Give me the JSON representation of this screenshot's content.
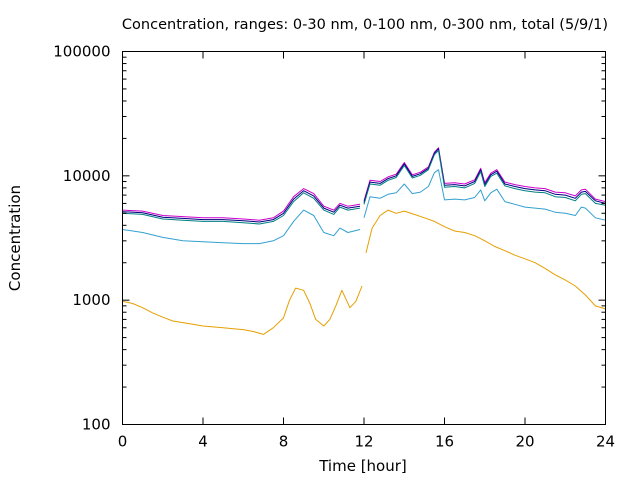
{
  "chart_data": {
    "type": "line",
    "title": "Concentration, ranges: 0-30 nm, 0-100 nm, 0-300 nm, total (5/9/1)",
    "xlabel": "Time [hour]",
    "ylabel": "Concentration",
    "xlim": [
      0,
      24
    ],
    "ylim": [
      100,
      100000
    ],
    "yscale": "log",
    "xticks": [
      "0",
      "4",
      "8",
      "12",
      "16",
      "20",
      "24"
    ],
    "yticks": [
      "100",
      "1000",
      "10000",
      "100000"
    ],
    "grid": false,
    "legend": "none",
    "series": [
      {
        "color": "#cc00cc",
        "x": [
          0,
          1,
          2,
          3,
          4,
          5,
          6,
          6.8,
          7.5,
          8,
          8.5,
          9,
          9.5,
          10,
          10.5,
          10.8,
          11.2,
          11.8,
          12,
          12.3,
          12.8,
          13.2,
          13.6,
          14,
          14.4,
          14.8,
          15.2,
          15.5,
          15.7,
          16,
          16.5,
          17,
          17.5,
          17.8,
          18,
          18.3,
          18.6,
          19,
          19.5,
          20,
          20.5,
          21,
          21.5,
          22,
          22.5,
          22.8,
          23,
          23.5,
          24
        ],
        "values": [
          5300,
          5200,
          4800,
          4700,
          4600,
          4600,
          4500,
          4400,
          4600,
          5200,
          6800,
          7900,
          7200,
          5700,
          5300,
          6000,
          5700,
          5900,
          6300,
          9200,
          9000,
          9800,
          10300,
          12800,
          10200,
          10700,
          11800,
          15500,
          16800,
          8700,
          8800,
          8600,
          9300,
          11500,
          8800,
          10500,
          11200,
          8900,
          8500,
          8200,
          8000,
          7900,
          7400,
          7300,
          6900,
          7700,
          7800,
          6500,
          6200
        ]
      },
      {
        "color": "#000080",
        "x": [
          0,
          1,
          2,
          3,
          4,
          5,
          6,
          6.8,
          7.5,
          8,
          8.5,
          9,
          9.5,
          10,
          10.5,
          10.8,
          11.2,
          11.8,
          12,
          12.3,
          12.8,
          13.2,
          13.6,
          14,
          14.4,
          14.8,
          15.2,
          15.5,
          15.7,
          16,
          16.5,
          17,
          17.5,
          17.8,
          18,
          18.3,
          18.6,
          19,
          19.5,
          20,
          20.5,
          21,
          21.5,
          22,
          22.5,
          22.8,
          23,
          23.5,
          24
        ],
        "values": [
          5150,
          5050,
          4650,
          4550,
          4450,
          4450,
          4350,
          4250,
          4450,
          5000,
          6500,
          7600,
          6900,
          5500,
          5100,
          5800,
          5500,
          5700,
          6100,
          8900,
          8700,
          9500,
          10000,
          12500,
          9900,
          10400,
          11500,
          15200,
          16500,
          8400,
          8500,
          8300,
          9000,
          11200,
          8500,
          10200,
          10900,
          8600,
          8200,
          7900,
          7700,
          7600,
          7100,
          7000,
          6600,
          7400,
          7500,
          6300,
          6000
        ]
      },
      {
        "color": "#008080",
        "x": [
          0,
          1,
          2,
          3,
          4,
          5,
          6,
          6.8,
          7.5,
          8,
          8.5,
          9,
          9.5,
          10,
          10.5,
          10.8,
          11.2,
          11.8,
          12,
          12.3,
          12.8,
          13.2,
          13.6,
          14,
          14.4,
          14.8,
          15.2,
          15.5,
          15.7,
          16,
          16.5,
          17,
          17.5,
          17.8,
          18,
          18.3,
          18.6,
          19,
          19.5,
          20,
          20.5,
          21,
          21.5,
          22,
          22.5,
          22.8,
          23,
          23.5,
          24
        ],
        "values": [
          5000,
          4900,
          4500,
          4400,
          4300,
          4300,
          4200,
          4100,
          4300,
          4800,
          6200,
          7300,
          6600,
          5300,
          4900,
          5600,
          5300,
          5500,
          5900,
          8600,
          8400,
          9200,
          9700,
          12100,
          9600,
          10100,
          11200,
          14800,
          16000,
          8100,
          8200,
          8000,
          8700,
          10800,
          8200,
          9900,
          10500,
          8300,
          7900,
          7600,
          7400,
          7300,
          6800,
          6700,
          6300,
          7100,
          7200,
          6000,
          5800
        ]
      },
      {
        "color": "#33a0d0",
        "x": [
          0,
          1,
          2,
          3,
          4,
          5,
          6,
          6.8,
          7.5,
          8,
          8.5,
          9,
          9.5,
          10,
          10.5,
          10.8,
          11.2,
          11.8,
          12,
          12.3,
          12.8,
          13.2,
          13.6,
          14,
          14.4,
          14.8,
          15.2,
          15.5,
          15.7,
          16,
          16.5,
          17,
          17.5,
          17.8,
          18,
          18.3,
          18.6,
          19,
          19.5,
          20,
          20.5,
          21,
          21.5,
          22,
          22.5,
          22.8,
          23,
          23.5,
          24
        ],
        "values": [
          3700,
          3500,
          3200,
          3000,
          2950,
          2900,
          2850,
          2850,
          3000,
          3300,
          4300,
          5300,
          4800,
          3500,
          3300,
          3800,
          3500,
          3700,
          4600,
          6800,
          6600,
          7100,
          7300,
          8600,
          7200,
          7400,
          8200,
          10600,
          11200,
          6400,
          6500,
          6400,
          6700,
          7700,
          6300,
          7300,
          7800,
          6200,
          5900,
          5600,
          5500,
          5400,
          5100,
          5000,
          4800,
          5600,
          5500,
          4600,
          4400
        ]
      },
      {
        "color": "#e69f00",
        "x": [
          0,
          0.5,
          1,
          1.5,
          2,
          2.5,
          3,
          3.5,
          4,
          4.5,
          5,
          5.5,
          6,
          6.5,
          7,
          7.5,
          8,
          8.3,
          8.6,
          9,
          9.3,
          9.6,
          10,
          10.3,
          10.6,
          10.9,
          11.3,
          11.6,
          11.9,
          12.1,
          12.4,
          12.8,
          13.2,
          13.6,
          14,
          14.5,
          15,
          15.5,
          16,
          16.5,
          17,
          17.5,
          18,
          18.5,
          19,
          19.5,
          20,
          20.5,
          21,
          21.5,
          22,
          22.5,
          23,
          23.5,
          24
        ],
        "values": [
          980,
          940,
          870,
          790,
          730,
          680,
          660,
          640,
          620,
          610,
          600,
          590,
          580,
          560,
          530,
          600,
          720,
          1000,
          1250,
          1200,
          950,
          700,
          620,
          700,
          900,
          1200,
          870,
          980,
          1300,
          2400,
          3800,
          4800,
          5300,
          5000,
          5200,
          4900,
          4600,
          4300,
          3900,
          3600,
          3500,
          3300,
          3000,
          2700,
          2500,
          2300,
          2150,
          2000,
          1800,
          1600,
          1450,
          1300,
          1100,
          900,
          850
        ]
      }
    ]
  }
}
